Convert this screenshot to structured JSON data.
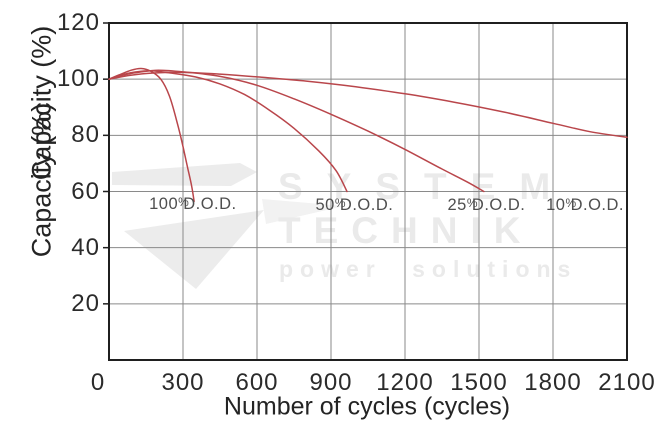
{
  "watermark": {
    "line1": "SYSTEM",
    "line2": "TECHNIK",
    "line3": "power solutions"
  },
  "chart_data": {
    "type": "line",
    "title": "",
    "xlabel": "Number of cycles (cycles)",
    "ylabel": "Capacity (%)",
    "xlim": [
      0,
      2100
    ],
    "ylim": [
      0,
      120
    ],
    "xticks": [
      0,
      300,
      600,
      900,
      1200,
      1500,
      1800,
      2100
    ],
    "yticks": [
      20,
      40,
      60,
      80,
      100,
      120
    ],
    "xtick_labels": [
      "0",
      "300",
      "600",
      "900",
      "1200",
      "1500",
      "1800",
      "2100"
    ],
    "ytick_labels": [
      "120",
      "100",
      "80",
      "60",
      "40",
      "20"
    ],
    "grid": true,
    "legend_position": "none",
    "line_color": "#b9464b",
    "series": [
      {
        "name": "100% D.O.D.",
        "x": [
          0,
          40,
          90,
          130,
          170,
          210,
          245,
          275,
          300,
          320,
          335,
          345
        ],
        "y": [
          100,
          101.5,
          103.2,
          103.8,
          102.8,
          100,
          94,
          85,
          76,
          68,
          62,
          56.5
        ]
      },
      {
        "name": "50% D.O.D.",
        "x": [
          0,
          50,
          110,
          170,
          250,
          350,
          450,
          550,
          650,
          750,
          850,
          920,
          965
        ],
        "y": [
          100,
          101.5,
          102.6,
          103,
          102.2,
          100.8,
          98.3,
          94.5,
          89,
          82.5,
          74.5,
          67.5,
          60
        ]
      },
      {
        "name": "25% D.O.D.",
        "x": [
          0,
          60,
          130,
          200,
          300,
          450,
          600,
          750,
          900,
          1050,
          1200,
          1350,
          1450,
          1520
        ],
        "y": [
          100,
          101.5,
          102.6,
          103.2,
          102.6,
          101,
          97.8,
          93,
          87.5,
          81.5,
          75,
          68,
          63.5,
          60
        ]
      },
      {
        "name": "10% D.O.D.",
        "x": [
          0,
          80,
          180,
          300,
          450,
          600,
          800,
          1000,
          1200,
          1400,
          1600,
          1800,
          1950,
          2100
        ],
        "y": [
          100,
          101.3,
          102.2,
          102.4,
          101.8,
          100.8,
          99.3,
          97.3,
          94.8,
          91.8,
          88.3,
          84.3,
          81.3,
          79.3
        ]
      }
    ],
    "annotations": [
      {
        "label": "100% D.O.D.",
        "x": 340,
        "y": 55.5
      },
      {
        "label": "50% D.O.D.",
        "x": 995,
        "y": 55.2
      },
      {
        "label": "25% D.O.D.",
        "x": 1530,
        "y": 55.2
      },
      {
        "label": "10% D.O.D.",
        "x": 1930,
        "y": 55.2
      }
    ],
    "colors": {
      "curve": "#b9464b",
      "grid": "#8a8a8a",
      "axis": "#1f1f1f",
      "tick_text": "#2b2b2b",
      "dod_text": "#4f4f4f",
      "watermark": "#eaeaea"
    }
  }
}
